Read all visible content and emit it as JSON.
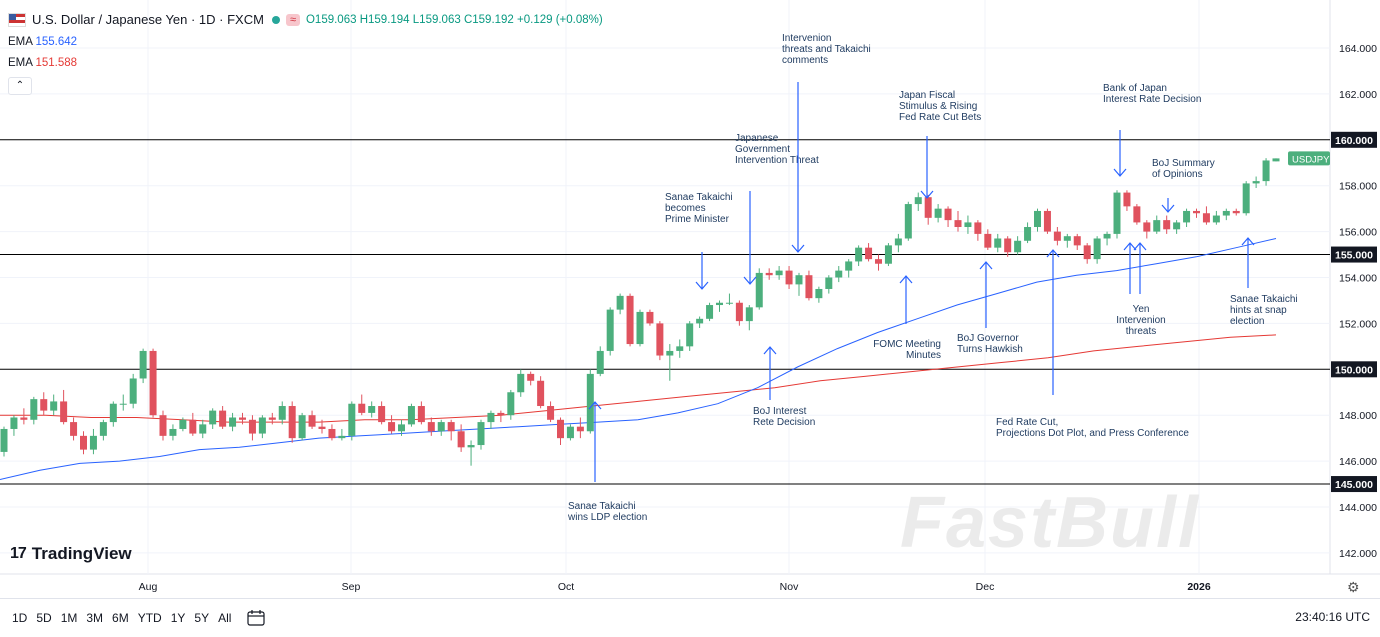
{
  "header": {
    "symbol_title": "U.S. Dollar / Japanese Yen · 1D · FXCM",
    "pill_label": "≈",
    "open": "O159.063",
    "high": "H159.194",
    "low": "L159.063",
    "close": "C159.192",
    "change": "+0.129 (+0.08%)",
    "ema1_label": "EMA",
    "ema1_value": "155.642",
    "ema2_label": "EMA",
    "ema2_value": "151.588"
  },
  "colors": {
    "up": "#4caf7d",
    "down": "#e0525e",
    "ema_fast": "#2962ff",
    "ema_slow": "#e53935",
    "annotation": "#2962ff",
    "annotation_text": "#1e3a5f",
    "hline": "#000000"
  },
  "chart_data": {
    "type": "candlestick",
    "symbol": "USDJPY",
    "ylim": [
      141,
      166
    ],
    "y_ticks": [
      "164.000",
      "162.000",
      "158.000",
      "156.000",
      "154.000",
      "152.000",
      "148.000",
      "146.000",
      "144.000",
      "142.000"
    ],
    "x_labels": [
      "Aug",
      "Sep",
      "Oct",
      "Nov",
      "Dec",
      "2026"
    ],
    "h_lines": [
      "160.000",
      "155.000",
      "150.000",
      "145.000"
    ],
    "last_price_label": "USDJPY",
    "candles": [
      [
        146.4,
        147.5,
        146.2,
        147.4
      ],
      [
        147.4,
        148.0,
        147.1,
        147.9
      ],
      [
        147.9,
        148.3,
        147.6,
        147.8
      ],
      [
        147.8,
        148.8,
        147.6,
        148.7
      ],
      [
        148.7,
        149.0,
        148.0,
        148.2
      ],
      [
        148.2,
        148.9,
        148.0,
        148.6
      ],
      [
        148.6,
        149.1,
        147.6,
        147.7
      ],
      [
        147.7,
        147.9,
        146.9,
        147.1
      ],
      [
        147.1,
        147.3,
        146.3,
        146.5
      ],
      [
        146.5,
        147.4,
        146.3,
        147.1
      ],
      [
        147.1,
        147.8,
        146.9,
        147.7
      ],
      [
        147.7,
        148.6,
        147.5,
        148.5
      ],
      [
        148.5,
        148.9,
        148.2,
        148.5
      ],
      [
        148.5,
        149.8,
        148.3,
        149.6
      ],
      [
        149.6,
        150.9,
        149.4,
        150.8
      ],
      [
        150.8,
        150.9,
        147.9,
        148.0
      ],
      [
        148.0,
        148.2,
        146.9,
        147.1
      ],
      [
        147.1,
        147.6,
        146.9,
        147.4
      ],
      [
        147.4,
        147.9,
        147.3,
        147.8
      ],
      [
        147.8,
        148.1,
        147.1,
        147.2
      ],
      [
        147.2,
        147.8,
        147.0,
        147.6
      ],
      [
        147.6,
        148.3,
        147.4,
        148.2
      ],
      [
        148.2,
        148.4,
        147.4,
        147.5
      ],
      [
        147.5,
        148.1,
        147.3,
        147.9
      ],
      [
        147.9,
        148.1,
        147.6,
        147.8
      ],
      [
        147.8,
        148.0,
        146.9,
        147.2
      ],
      [
        147.2,
        148.0,
        147.0,
        147.9
      ],
      [
        147.9,
        148.1,
        147.6,
        147.8
      ],
      [
        147.8,
        148.6,
        147.6,
        148.4
      ],
      [
        148.4,
        148.6,
        146.8,
        147.0
      ],
      [
        147.0,
        148.1,
        146.9,
        148.0
      ],
      [
        148.0,
        148.2,
        147.4,
        147.5
      ],
      [
        147.5,
        147.8,
        147.2,
        147.4
      ],
      [
        147.4,
        147.6,
        146.9,
        147.0
      ],
      [
        147.0,
        147.4,
        146.9,
        147.1
      ],
      [
        147.1,
        148.6,
        146.9,
        148.5
      ],
      [
        148.5,
        148.9,
        148.0,
        148.1
      ],
      [
        148.1,
        148.6,
        147.9,
        148.4
      ],
      [
        148.4,
        148.6,
        147.6,
        147.7
      ],
      [
        147.7,
        148.0,
        147.2,
        147.3
      ],
      [
        147.3,
        147.8,
        147.1,
        147.6
      ],
      [
        147.6,
        148.5,
        147.5,
        148.4
      ],
      [
        148.4,
        148.6,
        147.6,
        147.7
      ],
      [
        147.7,
        147.9,
        147.1,
        147.3
      ],
      [
        147.3,
        147.8,
        147.1,
        147.7
      ],
      [
        147.7,
        147.8,
        146.9,
        147.3
      ],
      [
        147.3,
        147.6,
        146.4,
        146.6
      ],
      [
        146.6,
        146.9,
        145.8,
        146.7
      ],
      [
        146.7,
        147.8,
        146.5,
        147.7
      ],
      [
        147.7,
        148.2,
        147.4,
        148.1
      ],
      [
        148.1,
        148.2,
        147.7,
        148.0
      ],
      [
        148.0,
        149.1,
        147.8,
        149.0
      ],
      [
        149.0,
        150.0,
        148.8,
        149.8
      ],
      [
        149.8,
        149.9,
        149.3,
        149.5
      ],
      [
        149.5,
        149.7,
        148.3,
        148.4
      ],
      [
        148.4,
        148.6,
        147.7,
        147.8
      ],
      [
        147.8,
        147.9,
        146.7,
        147.0
      ],
      [
        147.0,
        147.6,
        146.9,
        147.5
      ],
      [
        147.5,
        147.9,
        147.0,
        147.3
      ],
      [
        147.3,
        150.0,
        147.2,
        149.8
      ],
      [
        149.8,
        151.0,
        149.7,
        150.8
      ],
      [
        150.8,
        152.7,
        150.6,
        152.6
      ],
      [
        152.6,
        153.3,
        152.4,
        153.2
      ],
      [
        153.2,
        153.3,
        151.0,
        151.1
      ],
      [
        151.1,
        152.6,
        151.0,
        152.5
      ],
      [
        152.5,
        152.6,
        151.9,
        152.0
      ],
      [
        152.0,
        152.1,
        150.4,
        150.6
      ],
      [
        150.6,
        151.1,
        149.5,
        150.8
      ],
      [
        150.8,
        151.3,
        150.5,
        151.0
      ],
      [
        151.0,
        152.1,
        150.8,
        152.0
      ],
      [
        152.0,
        152.3,
        151.8,
        152.2
      ],
      [
        152.2,
        152.9,
        152.1,
        152.8
      ],
      [
        152.8,
        153.0,
        152.5,
        152.9
      ],
      [
        152.9,
        153.3,
        152.8,
        152.9
      ],
      [
        152.9,
        153.0,
        151.9,
        152.1
      ],
      [
        152.1,
        152.8,
        151.7,
        152.7
      ],
      [
        152.7,
        154.4,
        152.6,
        154.2
      ],
      [
        154.2,
        154.4,
        153.9,
        154.1
      ],
      [
        154.1,
        154.5,
        153.9,
        154.3
      ],
      [
        154.3,
        154.5,
        153.5,
        153.7
      ],
      [
        153.7,
        154.2,
        153.2,
        154.1
      ],
      [
        154.1,
        154.3,
        153.0,
        153.1
      ],
      [
        153.1,
        153.6,
        152.9,
        153.5
      ],
      [
        153.5,
        154.1,
        153.3,
        154.0
      ],
      [
        154.0,
        154.5,
        153.8,
        154.3
      ],
      [
        154.3,
        154.8,
        154.0,
        154.7
      ],
      [
        154.7,
        155.4,
        154.5,
        155.3
      ],
      [
        155.3,
        155.5,
        154.7,
        154.8
      ],
      [
        154.8,
        155.0,
        154.3,
        154.6
      ],
      [
        154.6,
        155.5,
        154.5,
        155.4
      ],
      [
        155.4,
        155.9,
        155.1,
        155.7
      ],
      [
        155.7,
        157.3,
        155.6,
        157.2
      ],
      [
        157.2,
        157.7,
        156.9,
        157.5
      ],
      [
        157.5,
        157.6,
        156.3,
        156.6
      ],
      [
        156.6,
        157.2,
        156.4,
        157.0
      ],
      [
        157.0,
        157.1,
        156.2,
        156.5
      ],
      [
        156.5,
        156.9,
        156.0,
        156.2
      ],
      [
        156.2,
        156.7,
        155.9,
        156.4
      ],
      [
        156.4,
        156.5,
        155.6,
        155.9
      ],
      [
        155.9,
        156.1,
        155.2,
        155.3
      ],
      [
        155.3,
        155.9,
        155.1,
        155.7
      ],
      [
        155.7,
        155.8,
        154.9,
        155.1
      ],
      [
        155.1,
        155.8,
        155.0,
        155.6
      ],
      [
        155.6,
        156.4,
        155.5,
        156.2
      ],
      [
        156.2,
        157.0,
        156.0,
        156.9
      ],
      [
        156.9,
        157.0,
        155.9,
        156.0
      ],
      [
        156.0,
        156.2,
        155.4,
        155.6
      ],
      [
        155.6,
        155.9,
        155.3,
        155.8
      ],
      [
        155.8,
        155.9,
        155.2,
        155.4
      ],
      [
        155.4,
        155.5,
        154.6,
        154.8
      ],
      [
        154.8,
        155.8,
        154.6,
        155.7
      ],
      [
        155.7,
        156.0,
        155.4,
        155.9
      ],
      [
        155.9,
        157.8,
        155.7,
        157.7
      ],
      [
        157.7,
        157.8,
        156.9,
        157.1
      ],
      [
        157.1,
        157.2,
        156.3,
        156.4
      ],
      [
        156.4,
        156.5,
        155.7,
        156.0
      ],
      [
        156.0,
        156.7,
        155.9,
        156.5
      ],
      [
        156.5,
        156.7,
        155.9,
        156.1
      ],
      [
        156.1,
        156.5,
        155.9,
        156.4
      ],
      [
        156.4,
        157.0,
        156.2,
        156.9
      ],
      [
        156.9,
        157.0,
        156.6,
        156.8
      ],
      [
        156.8,
        157.1,
        156.3,
        156.4
      ],
      [
        156.4,
        156.9,
        156.3,
        156.7
      ],
      [
        156.7,
        157.0,
        156.5,
        156.9
      ],
      [
        156.9,
        157.0,
        156.7,
        156.8
      ],
      [
        156.8,
        158.2,
        156.7,
        158.1
      ],
      [
        158.1,
        158.4,
        157.9,
        158.2
      ],
      [
        158.2,
        159.2,
        158.0,
        159.1
      ],
      [
        159.06,
        159.19,
        159.06,
        159.19
      ]
    ],
    "ema_fast": [
      145.2,
      145.6,
      145.9,
      146.0,
      146.2,
      146.5,
      146.6,
      146.8,
      147.0,
      147.1,
      147.2,
      147.3,
      147.4,
      147.5,
      147.6,
      147.7,
      147.8,
      148.1,
      148.5,
      149.2,
      150.1,
      150.9,
      151.6,
      152.2,
      152.8,
      153.3,
      153.8,
      154.1,
      154.3,
      154.6,
      154.9,
      155.3,
      155.7
    ],
    "ema_slow": [
      148.0,
      148.0,
      147.9,
      147.9,
      147.8,
      147.7,
      147.7,
      147.7,
      147.8,
      147.8,
      147.9,
      148.0,
      148.2,
      148.4,
      148.6,
      148.8,
      149.0,
      149.2,
      149.5,
      149.7,
      149.9,
      150.1,
      150.3,
      150.5,
      150.8,
      151.0,
      151.2,
      151.4,
      151.5
    ]
  },
  "annotations": [
    "Sanae Takaichi wins LDP election",
    "Sanae Takaichi becomes Prime Minister",
    "Japanese Government Intervention Threat",
    "BoJ Interest Rete Decision",
    "Intervenion threats and Takaichi comments",
    "FOMC Meeting Minutes",
    "Japan Fiscal Stimulus & Rising Fed Rate Cut Bets",
    "BoJ Governor Turns Hawkish",
    "Fed Rate Cut, Projections Dot Plot, and Press Conference",
    "Bank of Japan Interest Rate Decision",
    "BoJ Summary of Opinions",
    "Yen Intervenion threats",
    "Sanae Takaichi hints at snap election"
  ],
  "toolbar": {
    "timeframes": [
      "1D",
      "5D",
      "1M",
      "3M",
      "6M",
      "YTD",
      "1Y",
      "5Y",
      "All"
    ],
    "clock": "23:40:16 UTC"
  },
  "branding": {
    "tradingview": "TradingView",
    "tradingview_mark": "17",
    "watermark": "FastBull"
  },
  "icons": [
    "flag-icon",
    "calendar-range-icon",
    "settings-gear-icon",
    "chevron-up-icon"
  ]
}
